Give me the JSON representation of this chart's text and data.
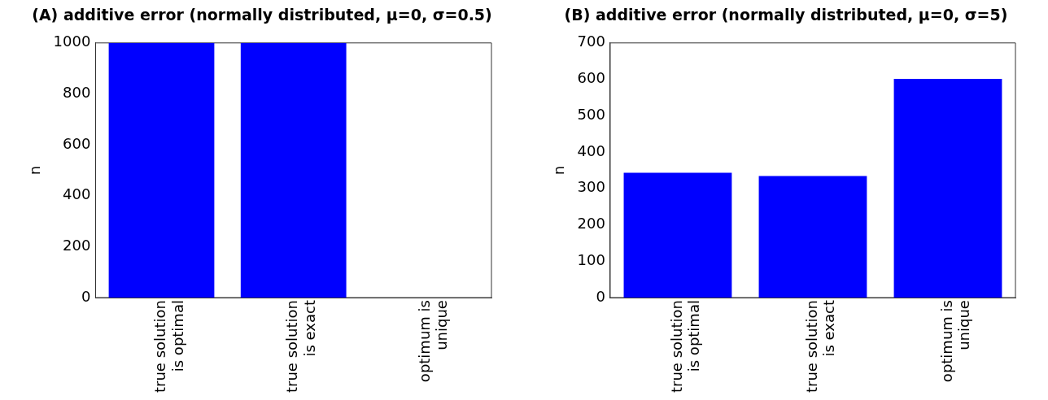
{
  "chart_data": [
    {
      "type": "bar",
      "title": "(A) additive error (normally distributed, μ=0, σ=0.5)",
      "ylabel": "n",
      "categories": [
        "true solution\nis optimal",
        "true solution\nis exact",
        "optimum is\nunique"
      ],
      "values": [
        1000,
        1000,
        0
      ],
      "color": "#0000ff",
      "ylim": [
        0,
        1000
      ],
      "yticks": [
        0,
        200,
        400,
        600,
        800,
        1000
      ],
      "grid": false
    },
    {
      "type": "bar",
      "title": "(B) additive error (normally distributed, μ=0, σ=5)",
      "ylabel": "n",
      "categories": [
        "true solution\nis optimal",
        "true solution\nis exact",
        "optimum is\nunique"
      ],
      "values": [
        343,
        334,
        601
      ],
      "color": "#0000ff",
      "ylim": [
        0,
        700
      ],
      "yticks": [
        0,
        100,
        200,
        300,
        400,
        500,
        600,
        700
      ],
      "grid": false
    }
  ]
}
